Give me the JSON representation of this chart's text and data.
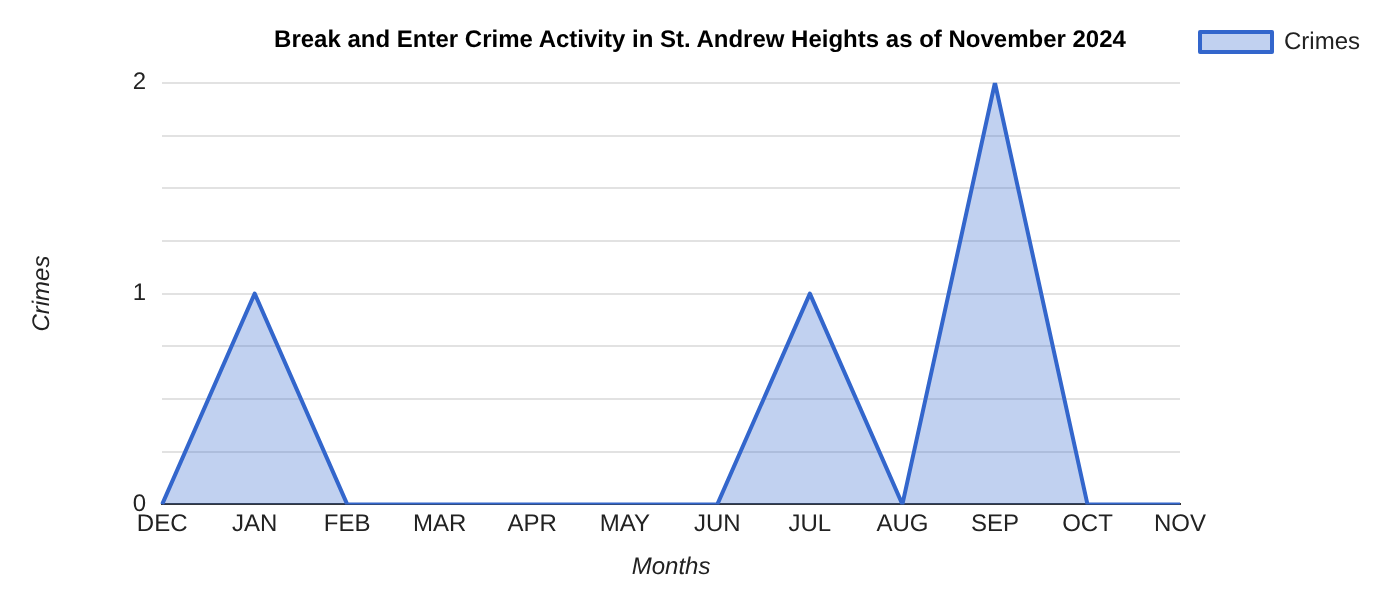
{
  "chart_data": {
    "type": "area",
    "title": "Break and Enter Crime Activity in St. Andrew Heights as of November 2024",
    "xlabel": "Months",
    "ylabel": "Crimes",
    "categories": [
      "DEC",
      "JAN",
      "FEB",
      "MAR",
      "APR",
      "MAY",
      "JUN",
      "JUL",
      "AUG",
      "SEP",
      "OCT",
      "NOV"
    ],
    "series": [
      {
        "name": "Crimes",
        "color": "#3366cc",
        "values": [
          0,
          1,
          0,
          0,
          0,
          0,
          0,
          1,
          0,
          2,
          0,
          0
        ]
      }
    ],
    "ylim": [
      0,
      2
    ],
    "yticks": [
      0,
      {
        "value": 0.25,
        "label": null
      },
      {
        "value": 0.5,
        "label": null
      },
      {
        "value": 0.75,
        "label": null
      },
      1,
      {
        "value": 1.25,
        "label": null
      },
      {
        "value": 1.5,
        "label": null
      },
      {
        "value": 1.75,
        "label": null
      },
      2
    ],
    "grid": "y",
    "legend": "top right",
    "marker": "none",
    "line_style": "solid"
  }
}
